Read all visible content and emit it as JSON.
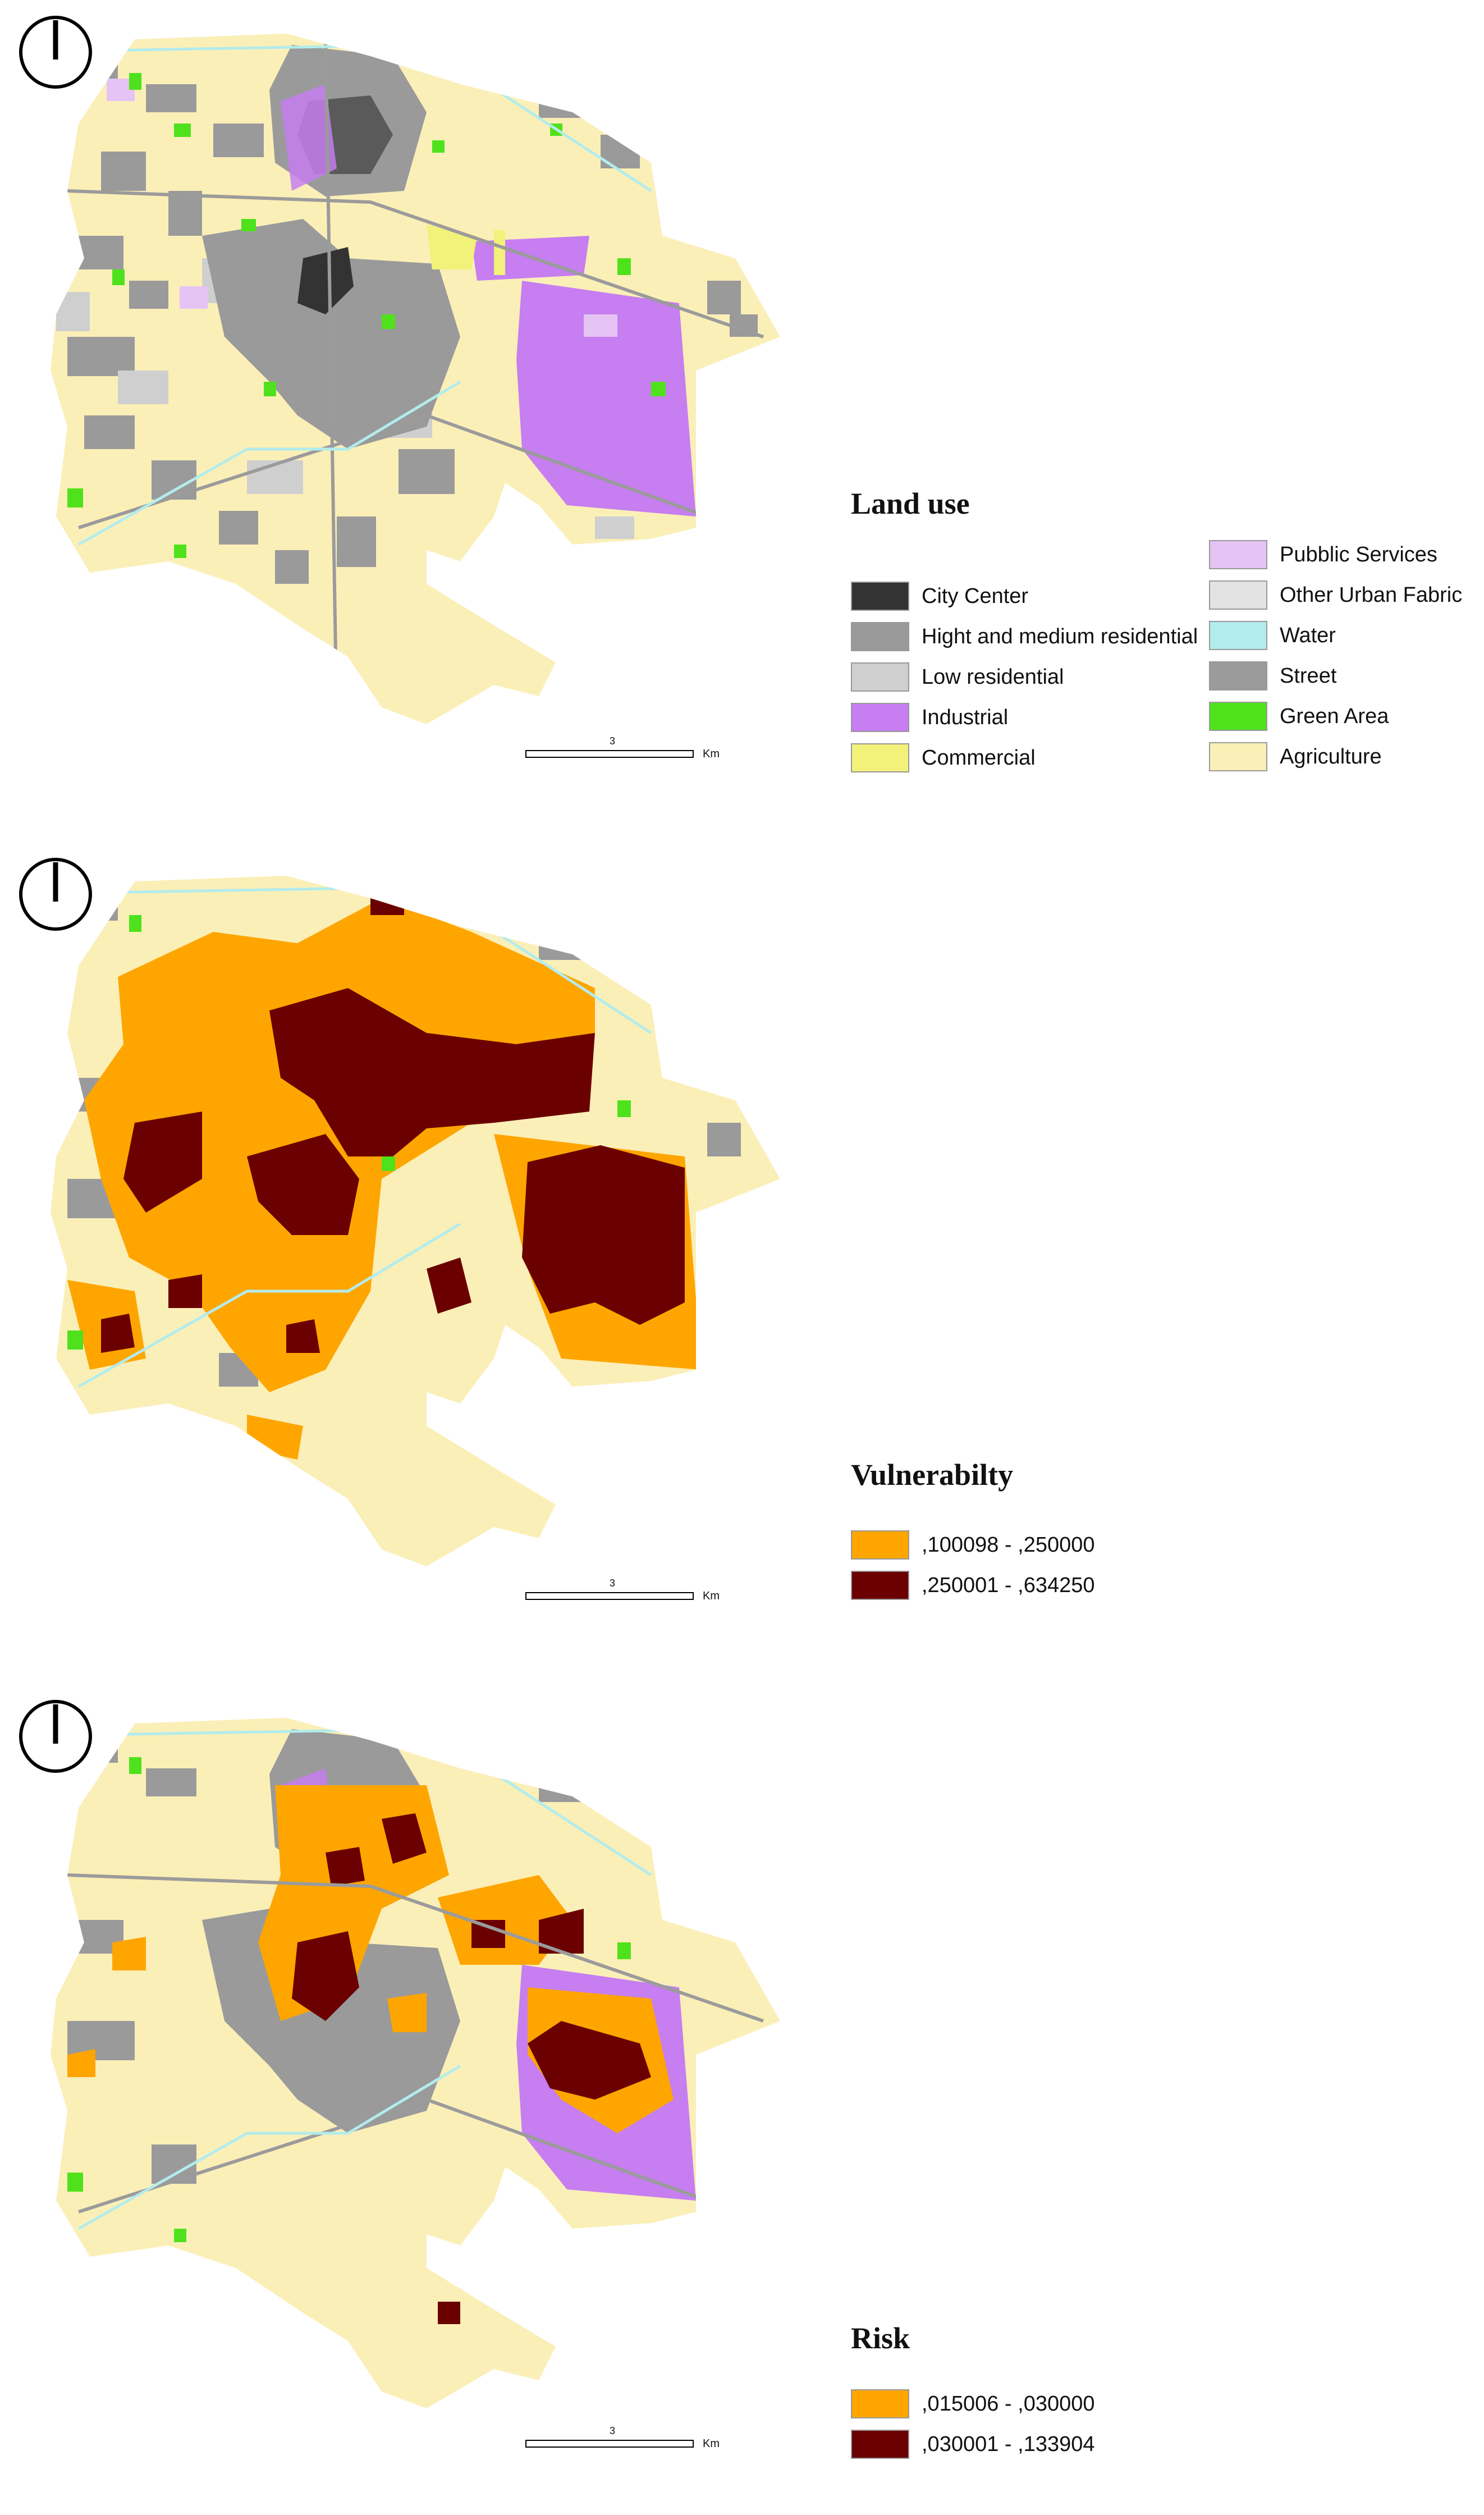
{
  "colors": {
    "city_center": "#333333",
    "high_medium_res": "#9a9a9a",
    "low_res": "#cfcfcf",
    "industrial": "#c67ef0",
    "commercial": "#f2f17a",
    "public_services": "#e6c3f5",
    "other_urban": "#e3e3e3",
    "water": "#b3ecec",
    "street": "#9b9b9b",
    "green": "#4fe21c",
    "agriculture": "#fbefb8",
    "orange": "#ffa500",
    "dark_red": "#6b0000"
  },
  "panels": [
    {
      "legend_title": "Land use",
      "items_left": [
        {
          "label": "City Center",
          "color": "#333333"
        },
        {
          "label": "Hight and medium residential",
          "color": "#9a9a9a"
        },
        {
          "label": "Low residential",
          "color": "#cfcfcf"
        },
        {
          "label": "Industrial",
          "color": "#c67ef0"
        },
        {
          "label": "Commercial",
          "color": "#f2f17a"
        }
      ],
      "items_right": [
        {
          "label": "Pubblic Services",
          "color": "#e6c3f5"
        },
        {
          "label": " Other Urban Fabric",
          "color": "#e3e3e3"
        },
        {
          "label": "Water",
          "color": "#b3ecec"
        },
        {
          "label": "Street",
          "color": "#9b9b9b"
        },
        {
          "label": "Green Area",
          "color": "#4fe21c"
        },
        {
          "label": "Agriculture",
          "color": "#fbefb8"
        }
      ],
      "scale_value": "3",
      "scale_unit": "Km"
    },
    {
      "legend_title": "Vulnerabilty",
      "items": [
        {
          "label": ",100098 - ,250000",
          "color": "#ffa500"
        },
        {
          "label": ",250001 - ,634250",
          "color": "#6b0000"
        }
      ],
      "scale_value": "3",
      "scale_unit": "Km"
    },
    {
      "legend_title": "Risk",
      "items": [
        {
          "label": ",015006 - ,030000",
          "color": "#ffa500"
        },
        {
          "label": ",030001 - ,133904",
          "color": "#6b0000"
        }
      ],
      "scale_value": "3",
      "scale_unit": "Km"
    }
  ]
}
